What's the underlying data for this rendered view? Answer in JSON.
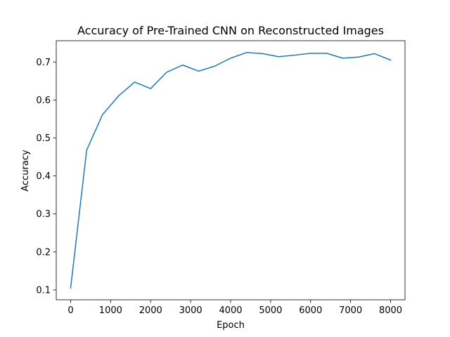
{
  "chart_data": {
    "type": "line",
    "title": "Accuracy of Pre-Trained CNN on Reconstructed Images",
    "xlabel": "Epoch",
    "ylabel": "Accuracy",
    "xlim": [
      -360,
      8360
    ],
    "ylim": [
      0.074,
      0.756
    ],
    "x_ticks": [
      0,
      1000,
      2000,
      3000,
      4000,
      5000,
      6000,
      7000,
      8000
    ],
    "y_ticks": [
      0.1,
      0.2,
      0.3,
      0.4,
      0.5,
      0.6,
      0.7
    ],
    "grid": false,
    "series": [
      {
        "color": "#1f77b4",
        "x": [
          0,
          400,
          800,
          1200,
          1600,
          2000,
          2400,
          2800,
          3200,
          3600,
          4000,
          4400,
          4800,
          5200,
          5600,
          6000,
          6400,
          6800,
          7200,
          7600,
          8000
        ],
        "y": [
          0.105,
          0.468,
          0.562,
          0.611,
          0.647,
          0.63,
          0.673,
          0.692,
          0.676,
          0.689,
          0.71,
          0.725,
          0.722,
          0.714,
          0.718,
          0.723,
          0.723,
          0.71,
          0.713,
          0.722,
          0.705
        ]
      }
    ]
  }
}
